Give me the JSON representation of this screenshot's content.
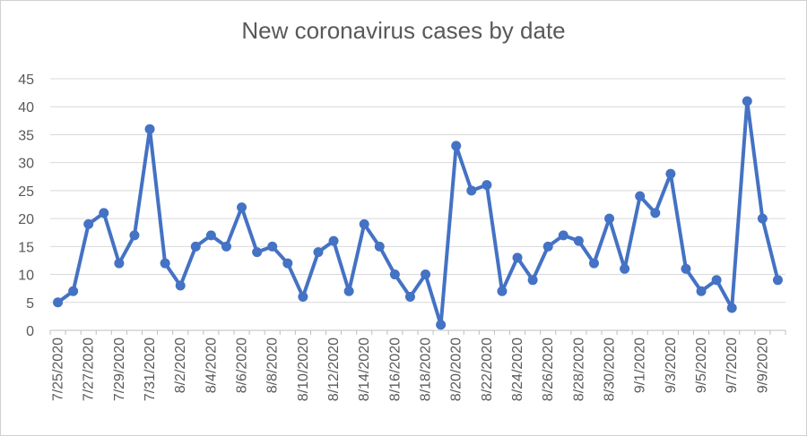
{
  "chart_data": {
    "type": "line",
    "title": "New coronavirus cases by date",
    "xlabel": "",
    "ylabel": "",
    "ylim": [
      0,
      45
    ],
    "yticks": [
      0,
      5,
      10,
      15,
      20,
      25,
      30,
      35,
      40,
      45
    ],
    "grid": true,
    "legend": "none",
    "color": "#4472C4",
    "x": [
      "7/25/2020",
      "7/26/2020",
      "7/27/2020",
      "7/28/2020",
      "7/29/2020",
      "7/30/2020",
      "7/31/2020",
      "8/1/2020",
      "8/2/2020",
      "8/3/2020",
      "8/4/2020",
      "8/5/2020",
      "8/6/2020",
      "8/7/2020",
      "8/8/2020",
      "8/9/2020",
      "8/10/2020",
      "8/11/2020",
      "8/12/2020",
      "8/13/2020",
      "8/14/2020",
      "8/15/2020",
      "8/16/2020",
      "8/17/2020",
      "8/18/2020",
      "8/19/2020",
      "8/20/2020",
      "8/21/2020",
      "8/22/2020",
      "8/23/2020",
      "8/24/2020",
      "8/25/2020",
      "8/26/2020",
      "8/27/2020",
      "8/28/2020",
      "8/29/2020",
      "8/30/2020",
      "8/31/2020",
      "9/1/2020",
      "9/2/2020",
      "9/3/2020",
      "9/4/2020",
      "9/5/2020",
      "9/6/2020",
      "9/7/2020",
      "9/8/2020",
      "9/9/2020",
      "9/10/2020"
    ],
    "xtick_labels": [
      "7/25/2020",
      "7/27/2020",
      "7/29/2020",
      "7/31/2020",
      "8/2/2020",
      "8/4/2020",
      "8/6/2020",
      "8/8/2020",
      "8/10/2020",
      "8/12/2020",
      "8/14/2020",
      "8/16/2020",
      "8/18/2020",
      "8/20/2020",
      "8/22/2020",
      "8/24/2020",
      "8/26/2020",
      "8/28/2020",
      "8/30/2020",
      "9/1/2020",
      "9/3/2020",
      "9/5/2020",
      "9/7/2020",
      "9/9/2020"
    ],
    "values": [
      5,
      7,
      19,
      21,
      12,
      17,
      36,
      12,
      8,
      15,
      17,
      15,
      22,
      14,
      15,
      12,
      6,
      14,
      16,
      7,
      19,
      15,
      10,
      6,
      10,
      1,
      33,
      25,
      26,
      7,
      13,
      9,
      15,
      17,
      16,
      12,
      20,
      11,
      24,
      21,
      28,
      11,
      7,
      9,
      4,
      41,
      20,
      9
    ]
  }
}
